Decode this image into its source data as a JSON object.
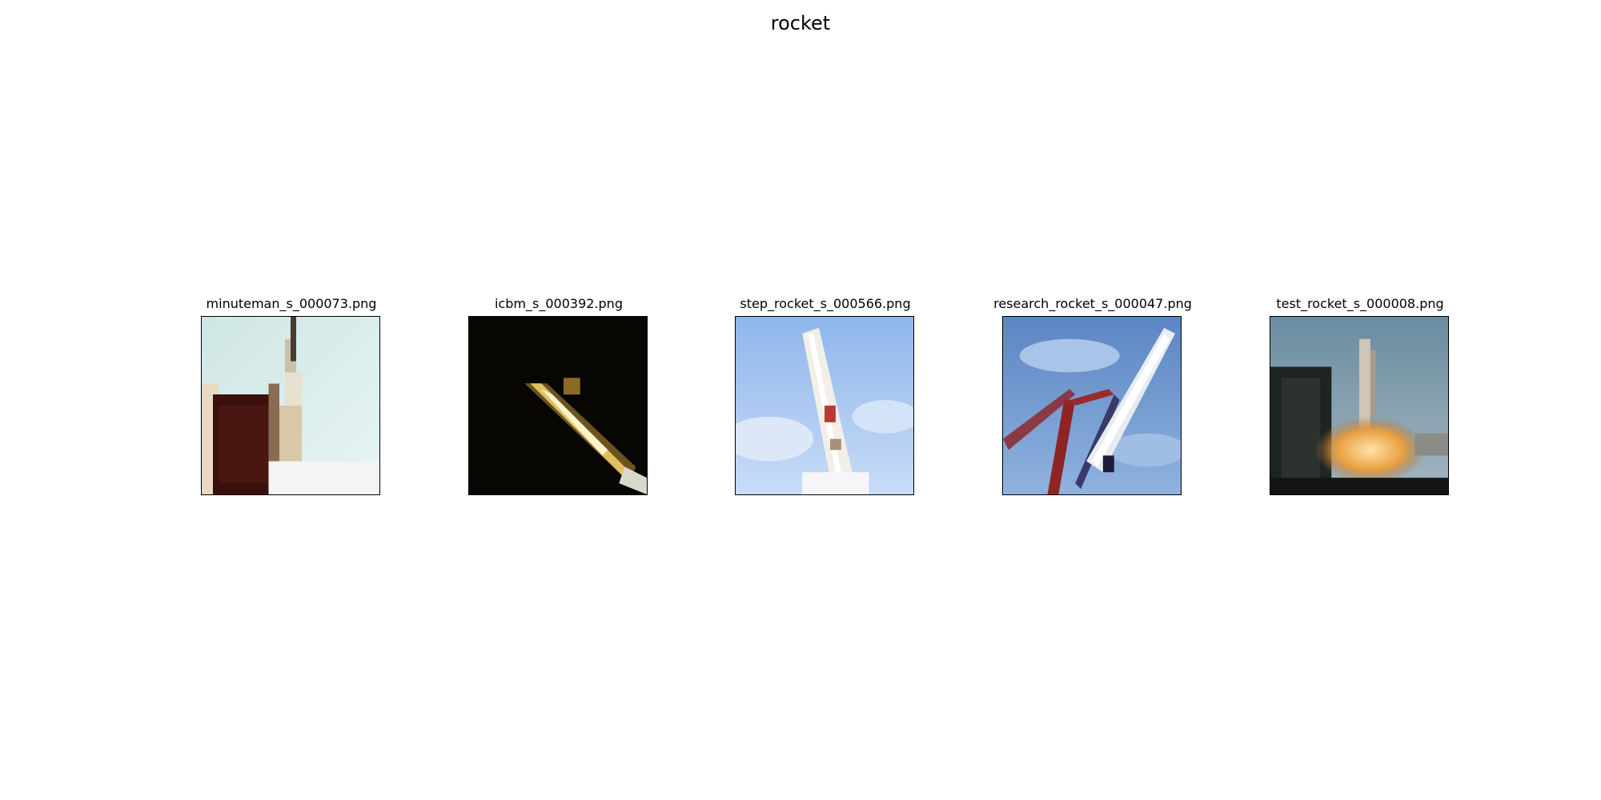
{
  "figure": {
    "title": "rocket"
  },
  "panels": [
    {
      "filename": "minuteman_s_000073.png"
    },
    {
      "filename": "icbm_s_000392.png"
    },
    {
      "filename": "step_rocket_s_000566.png"
    },
    {
      "filename": "research_rocket_s_000047.png"
    },
    {
      "filename": "test_rocket_s_000008.png"
    }
  ]
}
